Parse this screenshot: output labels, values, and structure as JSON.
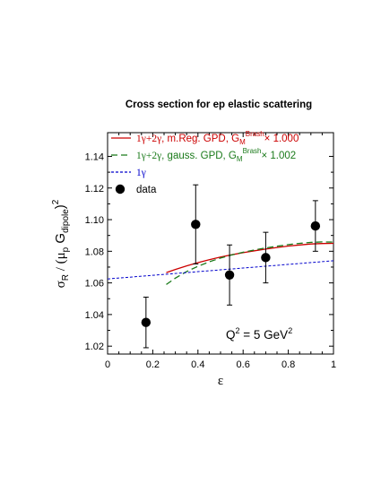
{
  "chart_data": {
    "type": "line",
    "title": "Cross section for ep elastic scattering",
    "xlabel": "ε",
    "ylabel": "σR / (μp Gdipole)²",
    "xlim": [
      0,
      1
    ],
    "ylim": [
      1.015,
      1.155
    ],
    "x_ticks": [
      0,
      0.2,
      0.4,
      0.6,
      0.8,
      1
    ],
    "x_tick_labels": [
      "0",
      "0.2",
      "0.4",
      "0.6",
      "0.8",
      "1"
    ],
    "y_ticks": [
      1.02,
      1.04,
      1.06,
      1.08,
      1.1,
      1.12,
      1.14
    ],
    "y_tick_labels": [
      "1.02",
      "1.04",
      "1.06",
      "1.08",
      "1.10",
      "1.12",
      "1.14"
    ],
    "annotation": "Q² = 5 GeV²",
    "series": [
      {
        "name": "1γ+2γ, m.Reg. GPD, GMBrash× 1.000",
        "style": "solid",
        "color": "#cc0000",
        "x": [
          0.26,
          0.3,
          0.35,
          0.4,
          0.45,
          0.5,
          0.55,
          0.6,
          0.65,
          0.7,
          0.75,
          0.8,
          0.85,
          0.9,
          0.95,
          1.0
        ],
        "y": [
          1.0665,
          1.0685,
          1.0708,
          1.0728,
          1.0746,
          1.0763,
          1.0778,
          1.0791,
          1.0803,
          1.0814,
          1.0824,
          1.0833,
          1.084,
          1.0846,
          1.0849,
          1.085
        ]
      },
      {
        "name": "1γ+2γ, gauss. GPD, GMBrash× 1.002",
        "style": "dashed",
        "color": "#1a7a1a",
        "x": [
          0.26,
          0.3,
          0.35,
          0.4,
          0.45,
          0.5,
          0.55,
          0.6,
          0.65,
          0.7,
          0.75,
          0.8,
          0.85,
          0.9,
          0.95,
          1.0
        ],
        "y": [
          1.059,
          1.063,
          1.0672,
          1.0705,
          1.0733,
          1.0757,
          1.0777,
          1.0794,
          1.0808,
          1.0821,
          1.0832,
          1.0842,
          1.085,
          1.0856,
          1.0859,
          1.0858
        ]
      },
      {
        "name": "1γ",
        "style": "dotted",
        "color": "#0000cc",
        "x": [
          0,
          1
        ],
        "y": [
          1.0625,
          1.074
        ]
      },
      {
        "name": "data",
        "style": "points",
        "color": "#000000",
        "x": [
          0.17,
          0.39,
          0.54,
          0.7,
          0.92
        ],
        "y": [
          1.035,
          1.097,
          1.065,
          1.076,
          1.096
        ],
        "err": [
          0.016,
          0.025,
          0.019,
          0.016,
          0.016
        ]
      }
    ],
    "legend": [
      {
        "prefix": "1γ+2γ, m.Reg. GPD, G",
        "sub": "M",
        "sup": "Brash",
        "suffix": "× 1.000",
        "color": "#cc0000",
        "style": "solid"
      },
      {
        "prefix": "1γ+2γ, gauss. GPD, G",
        "sub": "M",
        "sup": "Brash",
        "suffix": "× 1.002",
        "color": "#1a7a1a",
        "style": "dashed"
      },
      {
        "prefix": "1γ",
        "sub": "",
        "sup": "",
        "suffix": "",
        "color": "#0000cc",
        "style": "dotted"
      },
      {
        "prefix": "data",
        "sub": "",
        "sup": "",
        "suffix": "",
        "color": "#000000",
        "style": "marker"
      }
    ],
    "legend_position": "top-left",
    "grid": false
  }
}
